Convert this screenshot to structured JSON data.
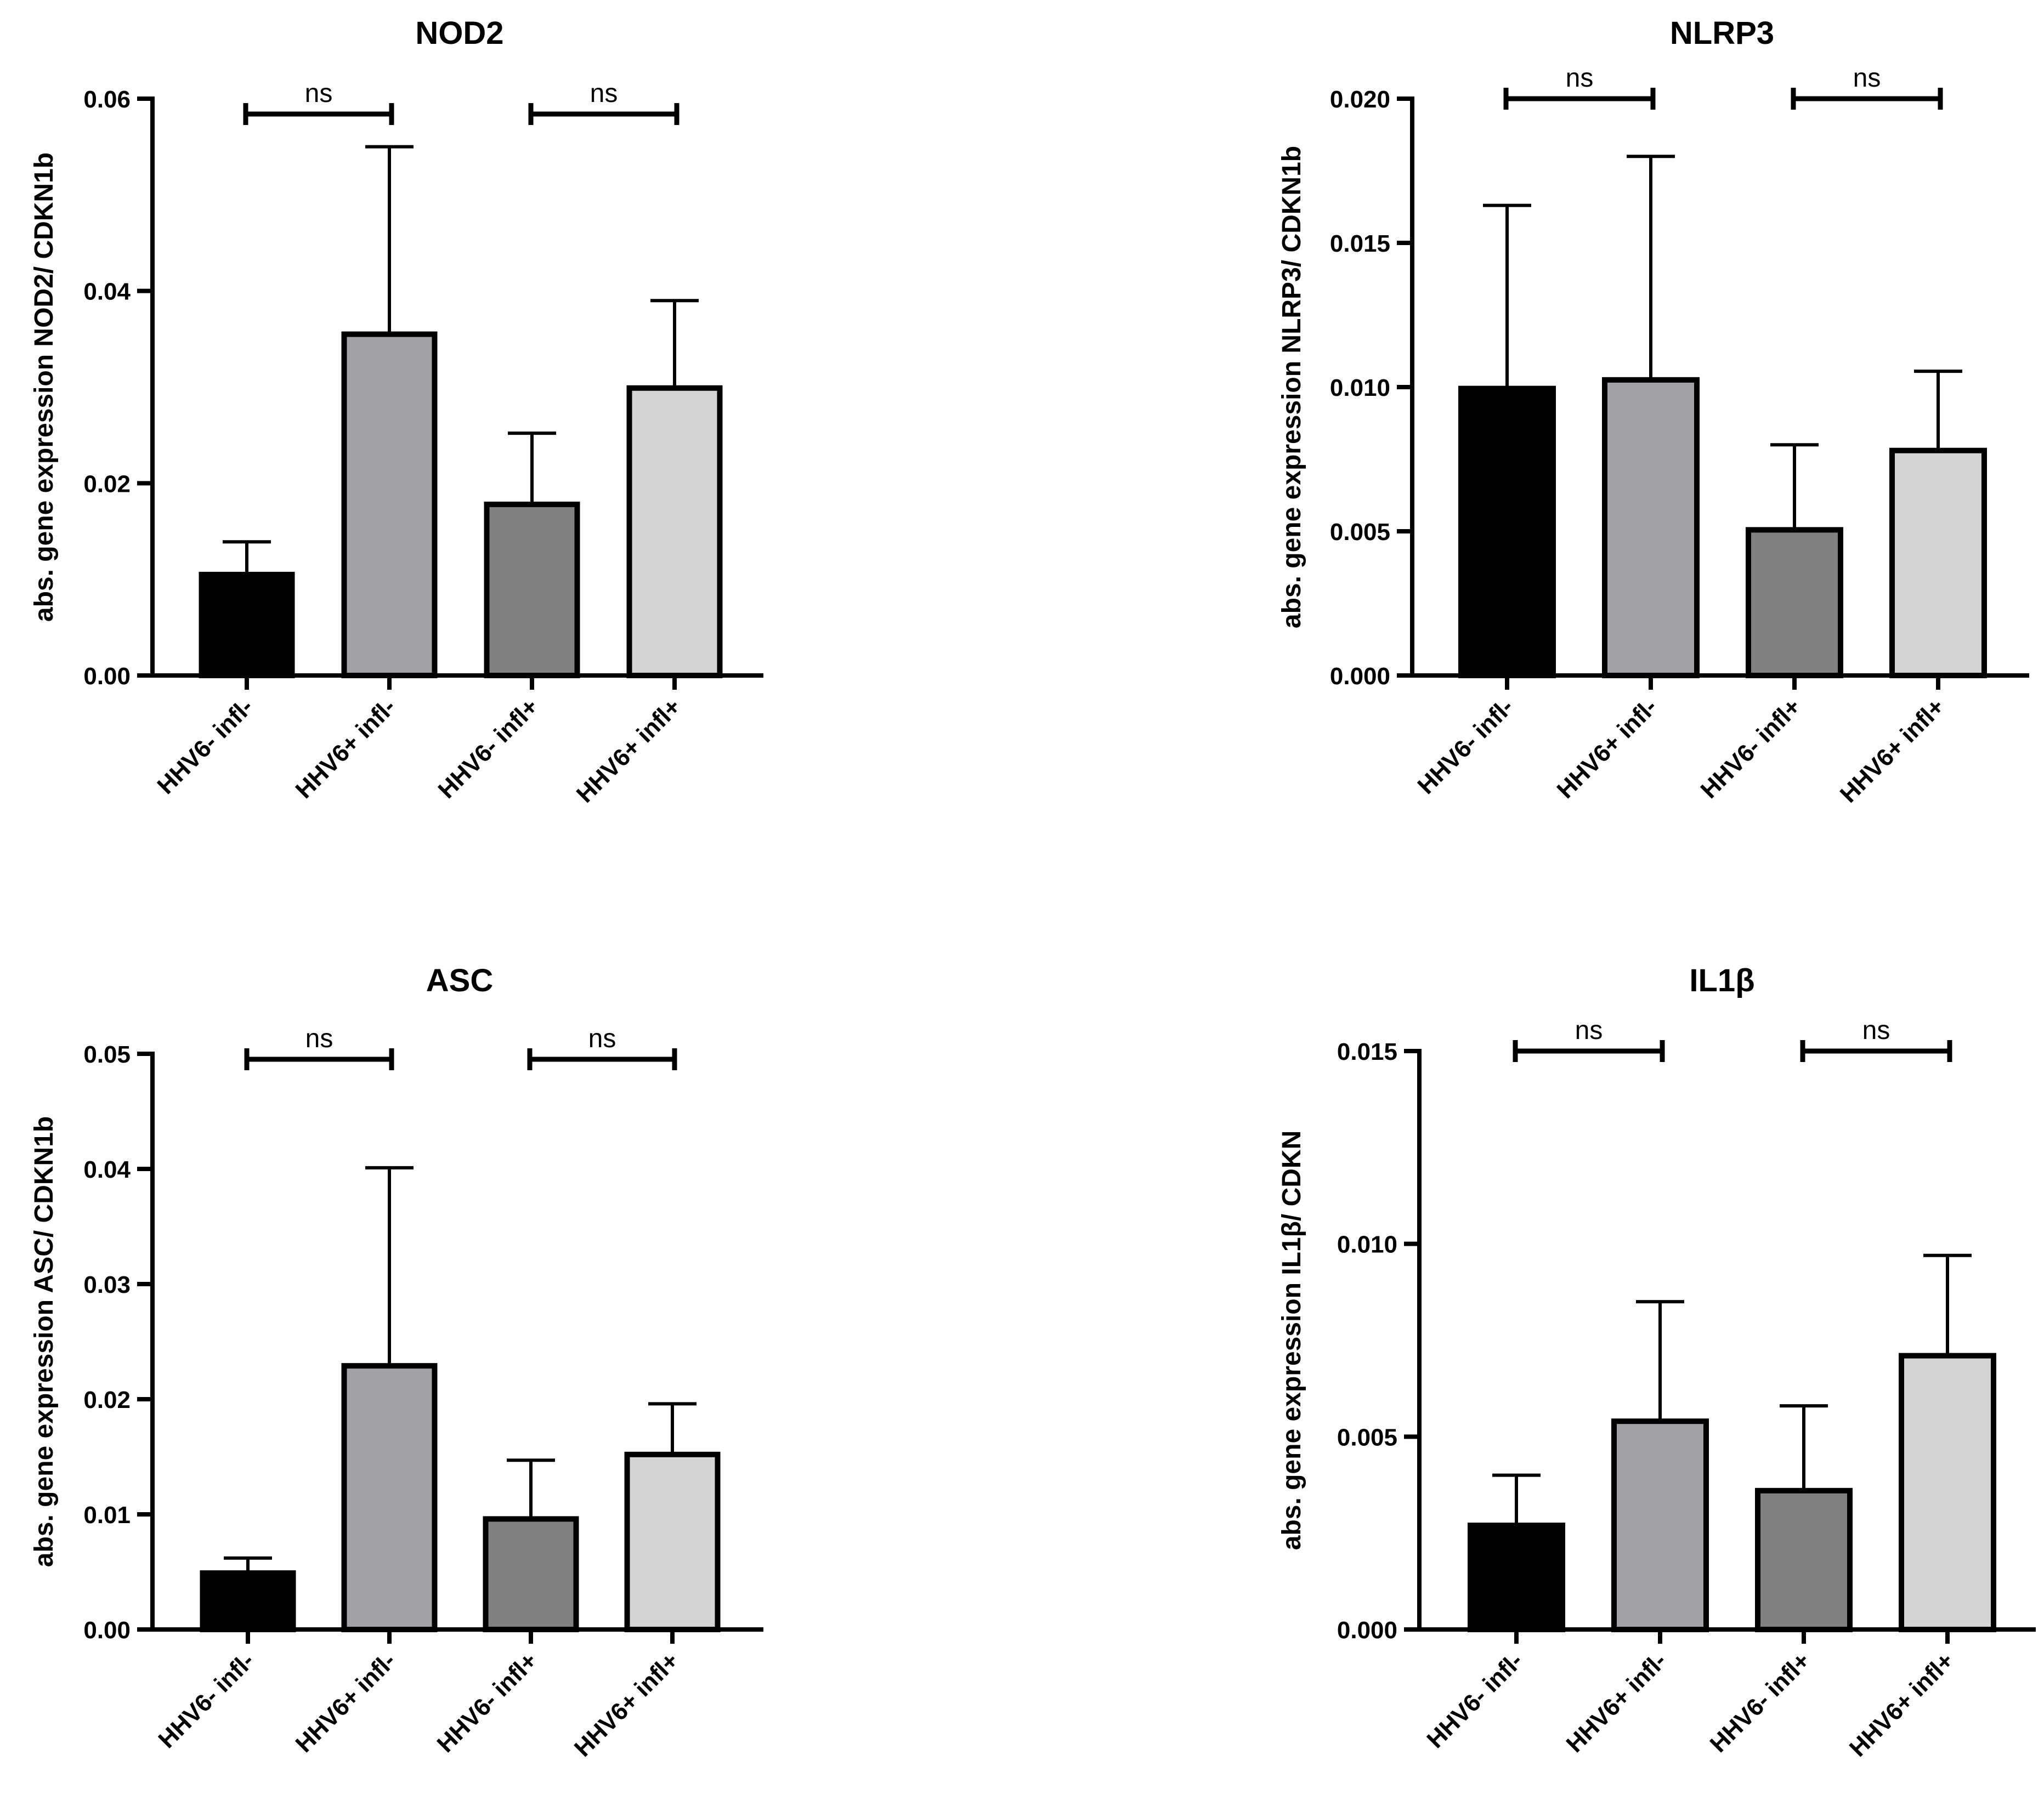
{
  "chart_data": [
    {
      "type": "bar",
      "title": "NOD2",
      "ylabel": "abs. gene expression NOD2/ CDKN1b",
      "ylim": [
        0,
        0.06
      ],
      "yticks": [
        "0.00",
        "0.02",
        "0.04",
        "0.06"
      ],
      "categories": [
        "HHV6- infl-",
        "HHV6+ infl-",
        "HHV6- infl+",
        "HHV6+ infl+"
      ],
      "values": [
        0.0105,
        0.0355,
        0.0178,
        0.0299
      ],
      "errors": [
        0.0034,
        0.0195,
        0.0074,
        0.0091
      ],
      "colors": [
        "#000000",
        "#a2a1a6",
        "#808080",
        "#d4d4d4"
      ],
      "comparisons": [
        {
          "from": 0,
          "to": 1,
          "label": "ns"
        },
        {
          "from": 2,
          "to": 3,
          "label": "ns"
        }
      ]
    },
    {
      "type": "bar",
      "title": "NLRP3",
      "ylabel": "abs. gene expression NLRP3/ CDKN1b",
      "ylim": [
        0,
        0.02
      ],
      "yticks": [
        "0.000",
        "0.005",
        "0.010",
        "0.015",
        "0.020"
      ],
      "categories": [
        "HHV6- infl-",
        "HHV6+ infl-",
        "HHV6- infl+",
        "HHV6+ infl+"
      ],
      "values": [
        0.00995,
        0.01025,
        0.00505,
        0.0078
      ],
      "errors": [
        0.00635,
        0.00775,
        0.00295,
        0.00275
      ],
      "colors": [
        "#000000",
        "#a2a1a6",
        "#808080",
        "#d4d4d4"
      ],
      "comparisons": [
        {
          "from": 0,
          "to": 1,
          "label": "ns"
        },
        {
          "from": 2,
          "to": 3,
          "label": "ns"
        }
      ]
    },
    {
      "type": "bar",
      "title": "ASC",
      "ylabel": "abs. gene expression ASC/ CDKN1b",
      "ylim": [
        0,
        0.05
      ],
      "yticks": [
        "0.00",
        "0.01",
        "0.02",
        "0.03",
        "0.04",
        "0.05"
      ],
      "categories": [
        "HHV6- infl-",
        "HHV6+ infl-",
        "HHV6- infl+",
        "HHV6+ infl+"
      ],
      "values": [
        0.0049,
        0.0229,
        0.0096,
        0.0152
      ],
      "errors": [
        0.0013,
        0.0172,
        0.0051,
        0.0044
      ],
      "colors": [
        "#000000",
        "#a2a1a6",
        "#808080",
        "#d4d4d4"
      ],
      "comparisons": [
        {
          "from": 0,
          "to": 1,
          "label": "ns"
        },
        {
          "from": 2,
          "to": 3,
          "label": "ns"
        }
      ]
    },
    {
      "type": "bar",
      "title": "IL1β",
      "ylabel": "abs. gene expression IL1β/ CDKN",
      "ylim": [
        0,
        0.015
      ],
      "yticks": [
        "0.000",
        "0.005",
        "0.010",
        "0.015"
      ],
      "categories": [
        "HHV6- infl-",
        "HHV6+ infl-",
        "HHV6- infl+",
        "HHV6+ infl+"
      ],
      "values": [
        0.0027,
        0.0054,
        0.0036,
        0.0071
      ],
      "errors": [
        0.0013,
        0.0031,
        0.0022,
        0.0026
      ],
      "colors": [
        "#000000",
        "#a2a1a6",
        "#808080",
        "#d4d4d4"
      ],
      "comparisons": [
        {
          "from": 0,
          "to": 1,
          "label": "ns"
        },
        {
          "from": 2,
          "to": 3,
          "label": "ns"
        }
      ]
    }
  ]
}
